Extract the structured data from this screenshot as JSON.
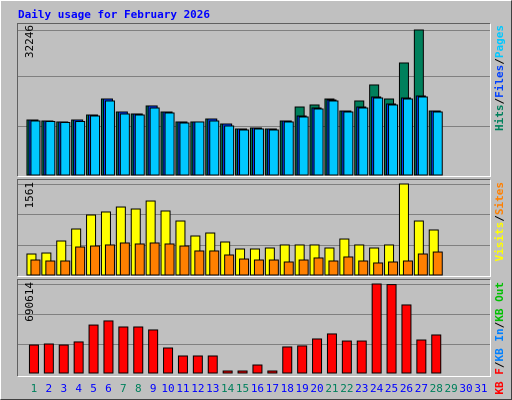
{
  "title": "Daily usage for February 2026",
  "separator": "/",
  "categories": [
    "1",
    "2",
    "3",
    "4",
    "5",
    "6",
    "7",
    "8",
    "9",
    "10",
    "11",
    "12",
    "13",
    "14",
    "15",
    "16",
    "17",
    "18",
    "19",
    "20",
    "21",
    "22",
    "23",
    "24",
    "25",
    "26",
    "27",
    "28",
    "29",
    "30",
    "31"
  ],
  "category_colors": [
    "#00805c",
    "#0000ff",
    "#0000ff",
    "#0000ff",
    "#0000ff",
    "#0000ff",
    "#00805c",
    "#00805c",
    "#0000ff",
    "#0000ff",
    "#0000ff",
    "#0000ff",
    "#0000ff",
    "#00805c",
    "#00805c",
    "#0000ff",
    "#0000ff",
    "#0000ff",
    "#0000ff",
    "#0000ff",
    "#00805c",
    "#00805c",
    "#0000ff",
    "#0000ff",
    "#0000ff",
    "#0000ff",
    "#0000ff",
    "#00805c",
    "#00805c",
    "#0000ff",
    "#0000ff"
  ],
  "chart_data": [
    {
      "type": "bar",
      "ylim": [
        0,
        32246
      ],
      "yticks": [
        32246
      ],
      "series": [
        {
          "name": "Hits",
          "color": "#00805c",
          "values": [
            12230,
            12010,
            11790,
            12230,
            13340,
            16900,
            14010,
            13570,
            15350,
            14010,
            11790,
            11790,
            12450,
            11340,
            10230,
            10450,
            10230,
            12010,
            15120,
            15570,
            16900,
            14230,
            16460,
            20020,
            16900,
            24910,
            32246,
            14230,
            null,
            null,
            null
          ]
        },
        {
          "name": "Files",
          "color": "#0040ff",
          "values": [
            12230,
            12010,
            11790,
            12230,
            13340,
            16900,
            14010,
            13570,
            15350,
            14010,
            11790,
            11790,
            12450,
            11340,
            10230,
            10450,
            10230,
            12010,
            13120,
            14900,
            16680,
            14230,
            15120,
            17350,
            15790,
            17120,
            17570,
            14230,
            null,
            null,
            null
          ]
        },
        {
          "name": "Pages",
          "color": "#00c8ff",
          "values": [
            12010,
            11900,
            11680,
            11900,
            13120,
            16460,
            13570,
            13340,
            14900,
            13790,
            11560,
            11790,
            12010,
            10900,
            10010,
            10230,
            10010,
            11790,
            12900,
            14680,
            16460,
            14010,
            14900,
            17120,
            15570,
            16900,
            17350,
            14010,
            null,
            null,
            null
          ]
        }
      ]
    },
    {
      "type": "bar",
      "ylim": [
        0,
        1561
      ],
      "yticks": [
        1561
      ],
      "series": [
        {
          "name": "Visits",
          "color": "#ffff00",
          "values": [
            360,
            377,
            583,
            789,
            1029,
            1081,
            1166,
            1132,
            1269,
            1098,
            926,
            669,
            720,
            566,
            446,
            446,
            463,
            515,
            515,
            515,
            463,
            617,
            515,
            463,
            515,
            1561,
            926,
            772,
            null,
            null,
            null
          ]
        },
        {
          "name": "Sites",
          "color": "#ff8000",
          "values": [
            257,
            240,
            240,
            480,
            497,
            515,
            549,
            532,
            549,
            532,
            497,
            412,
            412,
            343,
            274,
            257,
            257,
            223,
            257,
            292,
            240,
            309,
            240,
            206,
            223,
            240,
            360,
            394,
            null,
            null,
            null
          ]
        }
      ]
    },
    {
      "type": "bar",
      "ylim": [
        0,
        690614
      ],
      "yticks": [
        690614
      ],
      "series": [
        {
          "name": "KB F",
          "color": "#ff0000",
          "values": [
            217000,
            225000,
            217000,
            241000,
            372000,
            404000,
            357000,
            357000,
            334000,
            194000,
            132000,
            132000,
            132000,
            15500,
            15500,
            62000,
            15500,
            202000,
            210000,
            264000,
            303000,
            248000,
            248000,
            690614,
            686000,
            528000,
            256000,
            295000,
            null,
            null,
            null
          ]
        },
        {
          "name": "KB In",
          "color": "#0080ff"
        },
        {
          "name": "KB Out",
          "color": "#00c000"
        }
      ]
    }
  ]
}
